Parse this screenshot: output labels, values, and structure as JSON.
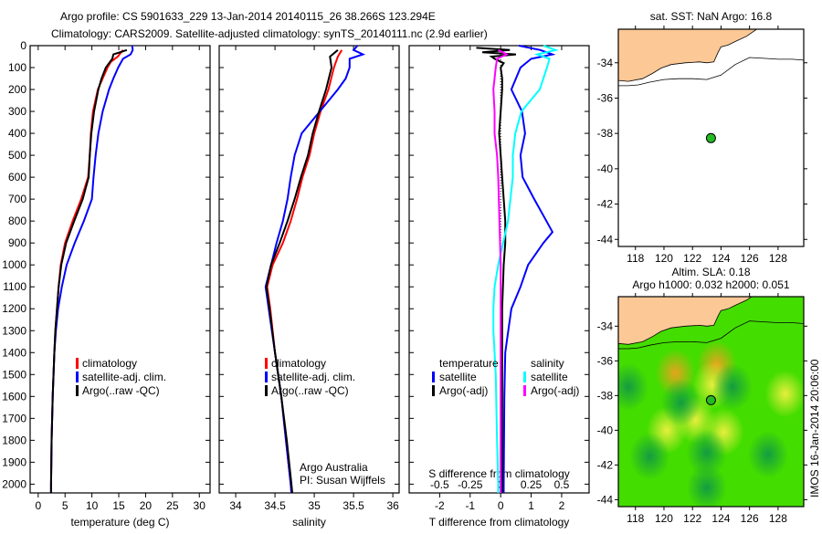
{
  "title": {
    "line1": "Argo profile: CS 5901633_229 13-Jan-2014 20140115_26 38.266S 123.294E",
    "line2": "Climatology: CARS2009. Satellite-adjusted climatology: synTS_20140111.nc (2.9d earlier)"
  },
  "colors": {
    "climatology": "#ff0000",
    "satellite": "#0000ff",
    "argo": "#000000",
    "sal_satellite": "#00ffff",
    "sal_argo": "#ff00ff",
    "land": "#fcc896",
    "sla_base": "#44dd00"
  },
  "chart_data": [
    {
      "type": "line",
      "title": "",
      "xlabel": "temperature (deg C)",
      "ylabel": "",
      "xlim": [
        -1.5,
        32
      ],
      "ylim": [
        2040,
        0
      ],
      "xticks": [
        0,
        5,
        10,
        15,
        20,
        25,
        30
      ],
      "yticks": [
        0,
        100,
        200,
        300,
        400,
        500,
        600,
        700,
        800,
        900,
        1000,
        1100,
        1200,
        1300,
        1400,
        1500,
        1600,
        1700,
        1800,
        1900,
        2000
      ],
      "legend": [
        "climatology",
        "satellite-adj. clim.",
        "Argo(..raw -QC)"
      ],
      "series": [
        {
          "name": "climatology",
          "color": "climatology",
          "depth": [
            20,
            50,
            75,
            100,
            150,
            200,
            300,
            400,
            500,
            600,
            700,
            800,
            900,
            1000,
            1100,
            1200,
            1300,
            1400,
            1600,
            1800,
            2000,
            2040
          ],
          "values": [
            15.8,
            14.8,
            13.5,
            12.9,
            12.0,
            11.1,
            10.2,
            9.8,
            9.6,
            9.3,
            8.0,
            6.4,
            5.0,
            4.2,
            3.8,
            3.5,
            3.2,
            3.0,
            2.7,
            2.5,
            2.4,
            2.4
          ]
        },
        {
          "name": "satellite-adj. clim.",
          "color": "satellite",
          "depth": [
            0,
            20,
            40,
            60,
            100,
            150,
            200,
            300,
            400,
            500,
            600,
            700,
            800,
            900,
            1000,
            1100,
            1200,
            1300,
            1400,
            1600,
            1800,
            2000,
            2040
          ],
          "values": [
            17.5,
            17.6,
            17.2,
            15.8,
            14.9,
            14.0,
            13.2,
            12.0,
            11.2,
            10.7,
            10.3,
            10.0,
            8.5,
            6.8,
            5.3,
            4.4,
            3.7,
            3.3,
            3.0,
            2.7,
            2.5,
            2.4,
            2.4
          ]
        },
        {
          "name": "Argo(..raw -QC)",
          "color": "argo",
          "depth": [
            20,
            40,
            60,
            80,
            100,
            150,
            200,
            300,
            400,
            500,
            600,
            700,
            800,
            900,
            1000,
            1100,
            1200,
            1300,
            1400,
            1600,
            1800,
            2000,
            2040
          ],
          "values": [
            16.5,
            14.0,
            13.8,
            13.2,
            12.6,
            11.8,
            11.2,
            10.4,
            9.9,
            9.6,
            9.4,
            8.3,
            6.7,
            5.2,
            4.3,
            3.8,
            3.5,
            3.2,
            3.0,
            2.7,
            2.5,
            2.4,
            2.4
          ]
        }
      ]
    },
    {
      "type": "line",
      "title": "",
      "xlabel": "salinity",
      "ylabel": "",
      "xlim": [
        33.79,
        36.08
      ],
      "ylim": [
        2040,
        0
      ],
      "xticks": [
        34,
        34.5,
        35,
        35.5,
        36
      ],
      "xticklabels": [
        "34",
        "34.5",
        "35",
        "35.5",
        "36"
      ],
      "legend": [
        "climatology",
        "satellite-adj. clim.",
        "Argo(..raw -QC)"
      ],
      "annotation": [
        "Argo Australia",
        "PI: Susan Wijffels"
      ],
      "series": [
        {
          "name": "climatology",
          "color": "climatology",
          "depth": [
            20,
            50,
            100,
            200,
            300,
            400,
            500,
            600,
            700,
            800,
            900,
            1000,
            1100,
            1200,
            1400,
            1600,
            1800,
            2000,
            2040
          ],
          "values": [
            35.35,
            35.3,
            35.25,
            35.18,
            35.08,
            35.0,
            34.94,
            34.85,
            34.78,
            34.7,
            34.6,
            34.47,
            34.4,
            34.44,
            34.5,
            34.58,
            34.64,
            34.7,
            34.71
          ]
        },
        {
          "name": "satellite-adj. clim.",
          "color": "satellite",
          "depth": [
            0,
            20,
            40,
            60,
            100,
            150,
            200,
            300,
            400,
            500,
            600,
            700,
            800,
            900,
            1000,
            1100,
            1200,
            1400,
            1600,
            1800,
            2000,
            2040
          ],
          "values": [
            35.55,
            35.5,
            35.62,
            35.45,
            35.45,
            35.4,
            35.3,
            35.07,
            34.84,
            34.75,
            34.7,
            34.66,
            34.6,
            34.52,
            34.45,
            34.38,
            34.42,
            34.5,
            34.58,
            34.64,
            34.7,
            34.71
          ]
        },
        {
          "name": "Argo(..raw -QC)",
          "color": "argo",
          "depth": [
            20,
            50,
            100,
            200,
            300,
            400,
            500,
            600,
            700,
            800,
            900,
            1000,
            1100,
            1200,
            1400,
            1600,
            1800,
            2000,
            2040
          ],
          "values": [
            35.3,
            35.2,
            35.22,
            35.15,
            35.06,
            34.98,
            34.92,
            34.83,
            34.75,
            34.66,
            34.56,
            34.45,
            34.39,
            34.43,
            34.5,
            34.58,
            34.65,
            34.71,
            34.72
          ]
        }
      ]
    },
    {
      "type": "line",
      "title": "",
      "xlabel": "T difference from climatology",
      "x2label": "S difference from climatology",
      "xlim": [
        -3,
        2.9
      ],
      "ylim": [
        2040,
        0
      ],
      "xticks": [
        -2,
        -1,
        0,
        1,
        2
      ],
      "x2ticks": [
        -0.5,
        -0.25,
        0,
        0.25,
        0.5
      ],
      "x2ticklabels": [
        "-0.5",
        "-0.25",
        "0",
        "0.25",
        "0.5"
      ],
      "legend_title": [
        "temperature",
        "salinity"
      ],
      "legend": [
        "satellite",
        "Argo(-adj)",
        "satellite",
        "Argo(-adj)"
      ],
      "series": [
        {
          "name": "temperature satellite",
          "color": "satellite",
          "kind": "T",
          "depth": [
            0,
            20,
            40,
            60,
            100,
            150,
            200,
            300,
            400,
            500,
            600,
            700,
            800,
            850,
            900,
            1000,
            1100,
            1200,
            1300,
            1400,
            1600,
            2000,
            2040
          ],
          "values": [
            0.6,
            1.3,
            1.7,
            1.0,
            0.65,
            0.5,
            0.35,
            0.7,
            0.8,
            0.65,
            0.72,
            1.1,
            1.5,
            1.7,
            1.4,
            0.9,
            0.65,
            0.35,
            0.25,
            0.15,
            0.12,
            0.1,
            0.1
          ]
        },
        {
          "name": "temperature Argo(-adj)",
          "color": "argo",
          "kind": "T",
          "depth": [
            10,
            20,
            30,
            40,
            50,
            60,
            80,
            100,
            150,
            200,
            300,
            400,
            500,
            600,
            700,
            800,
            900,
            1000,
            1200,
            1400,
            1600,
            1800,
            2000,
            2040
          ],
          "values": [
            -0.8,
            0.3,
            -0.6,
            0.5,
            -0.3,
            -0.2,
            0.1,
            0.0,
            0.05,
            0.05,
            0.0,
            -0.05,
            0.0,
            0.05,
            0.1,
            0.15,
            0.15,
            0.1,
            0.05,
            0.05,
            0.05,
            0.05,
            0.05,
            0.05
          ]
        },
        {
          "name": "salinity satellite",
          "color": "sal_satellite",
          "kind": "S",
          "depth": [
            0,
            20,
            40,
            60,
            100,
            150,
            200,
            300,
            400,
            500,
            600,
            800,
            1000,
            1100,
            1200,
            1300,
            1500,
            1800,
            2000,
            2040
          ],
          "values": [
            0.35,
            0.45,
            0.3,
            0.4,
            0.38,
            0.35,
            0.32,
            0.17,
            0.12,
            0.1,
            0.1,
            0.06,
            -0.02,
            -0.05,
            -0.06,
            -0.06,
            -0.04,
            -0.03,
            -0.02,
            -0.02
          ]
        },
        {
          "name": "salinity Argo(-adj)",
          "color": "sal_argo",
          "kind": "S",
          "depth": [
            20,
            40,
            60,
            100,
            150,
            200,
            300,
            400,
            500,
            600,
            800,
            1000,
            1200,
            1500,
            2000,
            2040
          ],
          "values": [
            -0.02,
            0.05,
            -0.03,
            -0.04,
            -0.05,
            -0.06,
            -0.05,
            -0.05,
            -0.03,
            -0.02,
            -0.01,
            0,
            0,
            0,
            0,
            0
          ]
        }
      ]
    }
  ],
  "maps": [
    {
      "title": [
        "sat. SST: NaN Argo: 16.8"
      ],
      "lon": [
        116.8,
        129.8
      ],
      "lat": [
        -32.1,
        -44.4
      ],
      "lonticks": [
        118,
        120,
        122,
        124,
        126,
        128
      ],
      "latticks": [
        -34,
        -36,
        -38,
        -40,
        -42,
        -44
      ],
      "profile": {
        "lon": 123.294,
        "lat": -38.266
      }
    },
    {
      "title": [
        "Altim. SLA: 0.18",
        "Argo h1000: 0.032 h2000: 0.051"
      ],
      "lon": [
        116.8,
        129.8
      ],
      "lat": [
        -32.3,
        -44.4
      ],
      "lonticks": [
        118,
        120,
        122,
        124,
        126,
        128
      ],
      "latticks": [
        -34,
        -36,
        -38,
        -40,
        -42,
        -44
      ],
      "profile": {
        "lon": 123.294,
        "lat": -38.266
      },
      "side_label": "IMOS 16-Jan-2014 20:06:00",
      "anomalies": [
        {
          "lon": 120.8,
          "lat": -36.7,
          "value": 0.35
        },
        {
          "lon": 123.7,
          "lat": -36.2,
          "value": 0.3
        },
        {
          "lon": 123.4,
          "lat": -37.4,
          "value": 0.2
        },
        {
          "lon": 120.2,
          "lat": -40.0,
          "value": 0.25
        },
        {
          "lon": 124.2,
          "lat": -40.1,
          "value": 0.2
        },
        {
          "lon": 122.2,
          "lat": -39.4,
          "value": 0.15
        },
        {
          "lon": 128.5,
          "lat": -37.9,
          "value": 0.15
        },
        {
          "lon": 121.2,
          "lat": -38.4,
          "value": -0.25
        },
        {
          "lon": 124.8,
          "lat": -37.5,
          "value": -0.25
        },
        {
          "lon": 119.0,
          "lat": -41.5,
          "value": -0.2
        },
        {
          "lon": 123.0,
          "lat": -41.3,
          "value": -0.2
        },
        {
          "lon": 127.3,
          "lat": -41.4,
          "value": -0.2
        },
        {
          "lon": 123.0,
          "lat": -43.3,
          "value": -0.15
        },
        {
          "lon": 117.5,
          "lat": -37.5,
          "value": -0.15
        }
      ]
    }
  ],
  "coast": {
    "lon": [
      116.8,
      117.5,
      118.5,
      119.2,
      119.8,
      120.5,
      121.5,
      122.5,
      123.0,
      123.5,
      123.8,
      124.0,
      124.5,
      125.0,
      125.8,
      126.5
    ],
    "lat": [
      -35.0,
      -35.05,
      -34.9,
      -34.6,
      -34.3,
      -34.1,
      -34.0,
      -33.95,
      -34.0,
      -33.95,
      -33.4,
      -33.1,
      -33.0,
      -32.8,
      -32.5,
      -32.1
    ]
  },
  "isobath": {
    "lon": [
      116.8,
      117.5,
      118.2,
      119,
      120,
      121,
      122,
      123,
      124,
      125,
      126,
      127,
      128,
      129,
      129.8
    ],
    "lat": [
      -35.3,
      -35.3,
      -35.25,
      -35.1,
      -34.95,
      -34.9,
      -34.9,
      -34.95,
      -34.7,
      -34.1,
      -33.7,
      -33.75,
      -33.8,
      -33.8,
      -33.85
    ]
  }
}
